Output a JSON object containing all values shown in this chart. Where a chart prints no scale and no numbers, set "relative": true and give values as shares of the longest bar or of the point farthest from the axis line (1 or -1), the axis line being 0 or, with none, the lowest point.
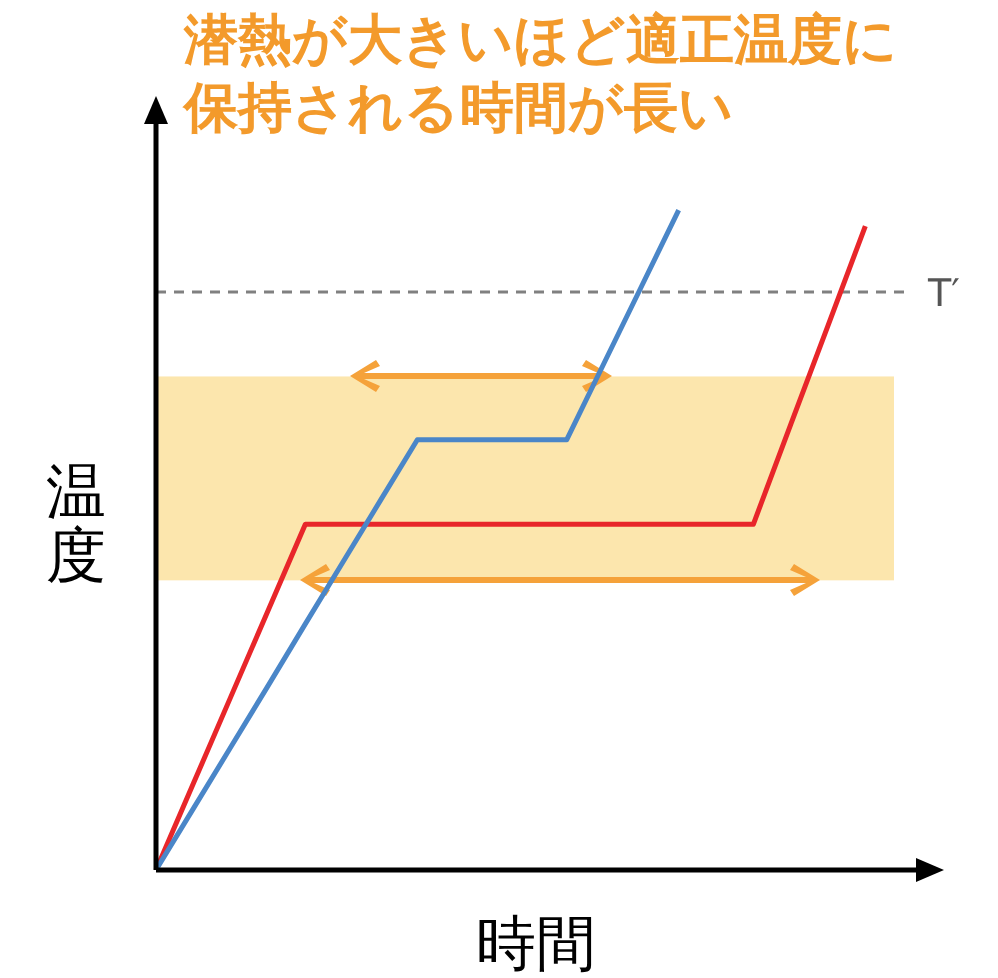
{
  "chart_data": {
    "type": "line",
    "title": "潜熱が大きいほど適正温度に保持される時間が長い",
    "xlabel": "時間",
    "ylabel": "温度",
    "relative": true,
    "line_style": "solid",
    "categories": [
      null,
      null,
      null,
      null,
      null,
      null,
      null,
      null,
      null,
      null,
      null,
      null,
      null,
      null,
      null,
      null,
      null,
      null,
      null,
      null
    ],
    "series": [
      {
        "color": "#e8262a",
        "values": [
          0,
          0.131,
          0.262,
          0.393,
          0.524,
          0.524,
          0.524,
          0.524,
          0.524,
          0.524,
          0.524,
          0.524,
          0.524,
          0.524,
          0.524,
          0.524,
          0.524,
          0.675,
          0.825,
          0.976
        ]
      },
      {
        "color": "#4a86c8",
        "values": [
          0,
          0.093,
          0.186,
          0.279,
          0.373,
          0.466,
          0.559,
          0.652,
          0.652,
          0.652,
          0.652,
          0.652,
          0.768,
          0.884,
          1.0,
          null,
          null,
          null,
          null,
          null
        ]
      }
    ],
    "ref_lines": [
      {
        "axis": "y",
        "value": 0.876,
        "label": "T′",
        "color": "#808080",
        "line_style": "dashed"
      }
    ],
    "bands": [
      {
        "axis": "y",
        "from": 0.439,
        "to": 0.748,
        "color": "#fce6ad"
      }
    ]
  }
}
